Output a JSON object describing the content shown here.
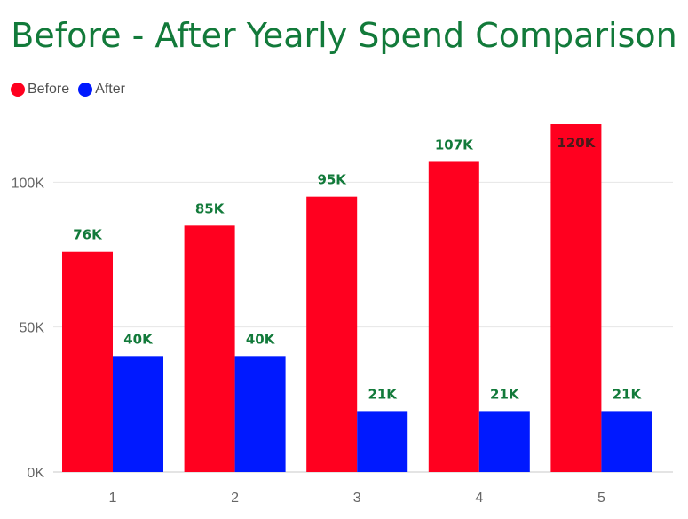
{
  "title": "Before - After Yearly Spend Comparison",
  "colors": {
    "before": "#ff001f",
    "after": "#0019ff",
    "title": "#127a3a",
    "labels": "#127a3a"
  },
  "chart_data": {
    "type": "bar",
    "title": "Before - After Yearly Spend Comparison",
    "xlabel": "",
    "ylabel": "",
    "categories": [
      "1",
      "2",
      "3",
      "4",
      "5"
    ],
    "series": [
      {
        "name": "Before",
        "values": [
          76000,
          85000,
          95000,
          107000,
          120000
        ],
        "labels": [
          "76K",
          "85K",
          "95K",
          "107K",
          "120K"
        ]
      },
      {
        "name": "After",
        "values": [
          40000,
          40000,
          21000,
          21000,
          21000
        ],
        "labels": [
          "40K",
          "40K",
          "21K",
          "21K",
          "21K"
        ]
      }
    ],
    "ylim": [
      0,
      120000
    ],
    "yticks": [
      0,
      50000,
      100000
    ],
    "ytick_labels": [
      "0K",
      "50K",
      "100K"
    ],
    "legend_position": "top-left",
    "grid": true
  }
}
